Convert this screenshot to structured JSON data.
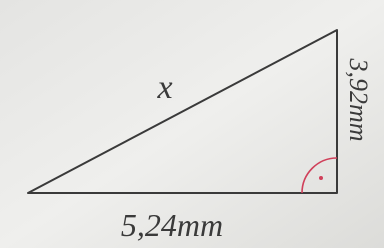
{
  "labels": {
    "hypotenuse": "x",
    "height": "3,92mm",
    "base": "5,24mm"
  }
}
